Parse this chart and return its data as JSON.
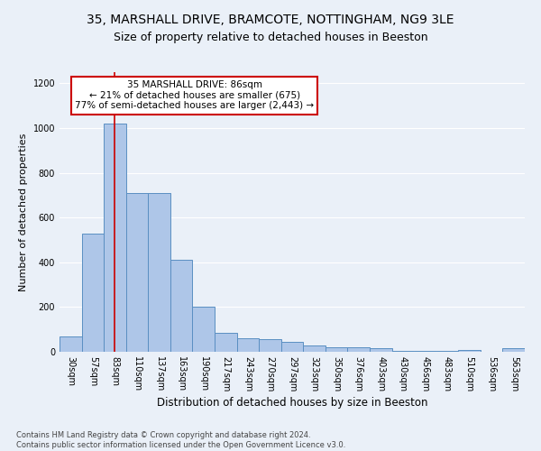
{
  "title1": "35, MARSHALL DRIVE, BRAMCOTE, NOTTINGHAM, NG9 3LE",
  "title2": "Size of property relative to detached houses in Beeston",
  "xlabel": "Distribution of detached houses by size in Beeston",
  "ylabel": "Number of detached properties",
  "categories": [
    "30sqm",
    "57sqm",
    "83sqm",
    "110sqm",
    "137sqm",
    "163sqm",
    "190sqm",
    "217sqm",
    "243sqm",
    "270sqm",
    "297sqm",
    "323sqm",
    "350sqm",
    "376sqm",
    "403sqm",
    "430sqm",
    "456sqm",
    "483sqm",
    "510sqm",
    "536sqm",
    "563sqm"
  ],
  "values": [
    70,
    530,
    1020,
    710,
    710,
    410,
    200,
    85,
    60,
    55,
    45,
    30,
    20,
    20,
    17,
    5,
    5,
    5,
    10,
    0,
    15
  ],
  "bar_color": "#aec6e8",
  "bar_edge_color": "#5a8fc2",
  "bg_color": "#eaf0f8",
  "grid_color": "#ffffff",
  "vline_x": 2.0,
  "vline_color": "#cc0000",
  "annotation_text": "35 MARSHALL DRIVE: 86sqm\n← 21% of detached houses are smaller (675)\n77% of semi-detached houses are larger (2,443) →",
  "annotation_box_color": "#ffffff",
  "annotation_box_edgecolor": "#cc0000",
  "footnote": "Contains HM Land Registry data © Crown copyright and database right 2024.\nContains public sector information licensed under the Open Government Licence v3.0.",
  "ylim": [
    0,
    1250
  ],
  "yticks": [
    0,
    200,
    400,
    600,
    800,
    1000,
    1200
  ],
  "title1_fontsize": 10,
  "title2_fontsize": 9,
  "xlabel_fontsize": 8.5,
  "ylabel_fontsize": 8,
  "tick_fontsize": 7,
  "annot_fontsize": 7.5,
  "footnote_fontsize": 6
}
